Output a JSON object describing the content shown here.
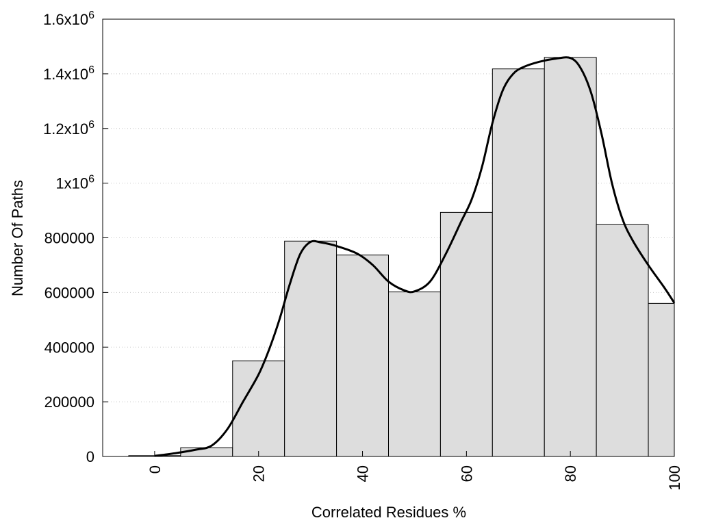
{
  "chart_data": {
    "type": "bar",
    "xlabel": "Correlated Residues %",
    "ylabel": "Number Of Paths",
    "x_tick_labels": [
      "0",
      "20",
      "40",
      "60",
      "80",
      "100"
    ],
    "x_tick_values": [
      0,
      20,
      40,
      60,
      80,
      100
    ],
    "y_tick_labels": [
      {
        "value": 0,
        "base": "0",
        "sup": ""
      },
      {
        "value": 200000,
        "base": "200000",
        "sup": ""
      },
      {
        "value": 400000,
        "base": "400000",
        "sup": ""
      },
      {
        "value": 600000,
        "base": "600000",
        "sup": ""
      },
      {
        "value": 800000,
        "base": "800000",
        "sup": ""
      },
      {
        "value": 1000000,
        "base": "1x10",
        "sup": "6"
      },
      {
        "value": 1200000,
        "base": "1.2x10",
        "sup": "6"
      },
      {
        "value": 1400000,
        "base": "1.4x10",
        "sup": "6"
      },
      {
        "value": 1600000,
        "base": "1.6x10",
        "sup": "6"
      }
    ],
    "xlim": [
      -10,
      100
    ],
    "ylim": [
      0,
      1600000
    ],
    "grid": "horizontal-dotted",
    "bins": [
      {
        "start": -5,
        "end": 5,
        "value": 3000
      },
      {
        "start": 5,
        "end": 15,
        "value": 32000
      },
      {
        "start": 15,
        "end": 25,
        "value": 350000
      },
      {
        "start": 25,
        "end": 35,
        "value": 788000
      },
      {
        "start": 35,
        "end": 45,
        "value": 737000
      },
      {
        "start": 45,
        "end": 55,
        "value": 602000
      },
      {
        "start": 55,
        "end": 65,
        "value": 893000
      },
      {
        "start": 65,
        "end": 75,
        "value": 1418000
      },
      {
        "start": 75,
        "end": 85,
        "value": 1460000
      },
      {
        "start": 85,
        "end": 95,
        "value": 848000
      },
      {
        "start": 95,
        "end": 100,
        "value": 560000
      }
    ],
    "curve": [
      {
        "x": 0,
        "y": 2000
      },
      {
        "x": 4,
        "y": 12000
      },
      {
        "x": 8,
        "y": 25000
      },
      {
        "x": 11,
        "y": 40000
      },
      {
        "x": 14,
        "y": 100000
      },
      {
        "x": 17,
        "y": 200000
      },
      {
        "x": 20,
        "y": 300000
      },
      {
        "x": 22,
        "y": 390000
      },
      {
        "x": 24,
        "y": 500000
      },
      {
        "x": 26,
        "y": 630000
      },
      {
        "x": 28,
        "y": 740000
      },
      {
        "x": 30,
        "y": 785000
      },
      {
        "x": 32,
        "y": 783000
      },
      {
        "x": 35,
        "y": 770000
      },
      {
        "x": 39,
        "y": 742000
      },
      {
        "x": 42,
        "y": 700000
      },
      {
        "x": 45,
        "y": 640000
      },
      {
        "x": 48,
        "y": 608000
      },
      {
        "x": 50,
        "y": 604000
      },
      {
        "x": 53,
        "y": 640000
      },
      {
        "x": 56,
        "y": 740000
      },
      {
        "x": 59,
        "y": 860000
      },
      {
        "x": 61,
        "y": 940000
      },
      {
        "x": 63,
        "y": 1060000
      },
      {
        "x": 65,
        "y": 1220000
      },
      {
        "x": 67,
        "y": 1340000
      },
      {
        "x": 69,
        "y": 1400000
      },
      {
        "x": 71,
        "y": 1425000
      },
      {
        "x": 74,
        "y": 1444000
      },
      {
        "x": 77,
        "y": 1455000
      },
      {
        "x": 80,
        "y": 1458000
      },
      {
        "x": 82,
        "y": 1420000
      },
      {
        "x": 84,
        "y": 1330000
      },
      {
        "x": 86,
        "y": 1180000
      },
      {
        "x": 88,
        "y": 1000000
      },
      {
        "x": 90,
        "y": 870000
      },
      {
        "x": 92,
        "y": 790000
      },
      {
        "x": 95,
        "y": 700000
      },
      {
        "x": 98,
        "y": 620000
      },
      {
        "x": 100,
        "y": 562000
      }
    ]
  }
}
